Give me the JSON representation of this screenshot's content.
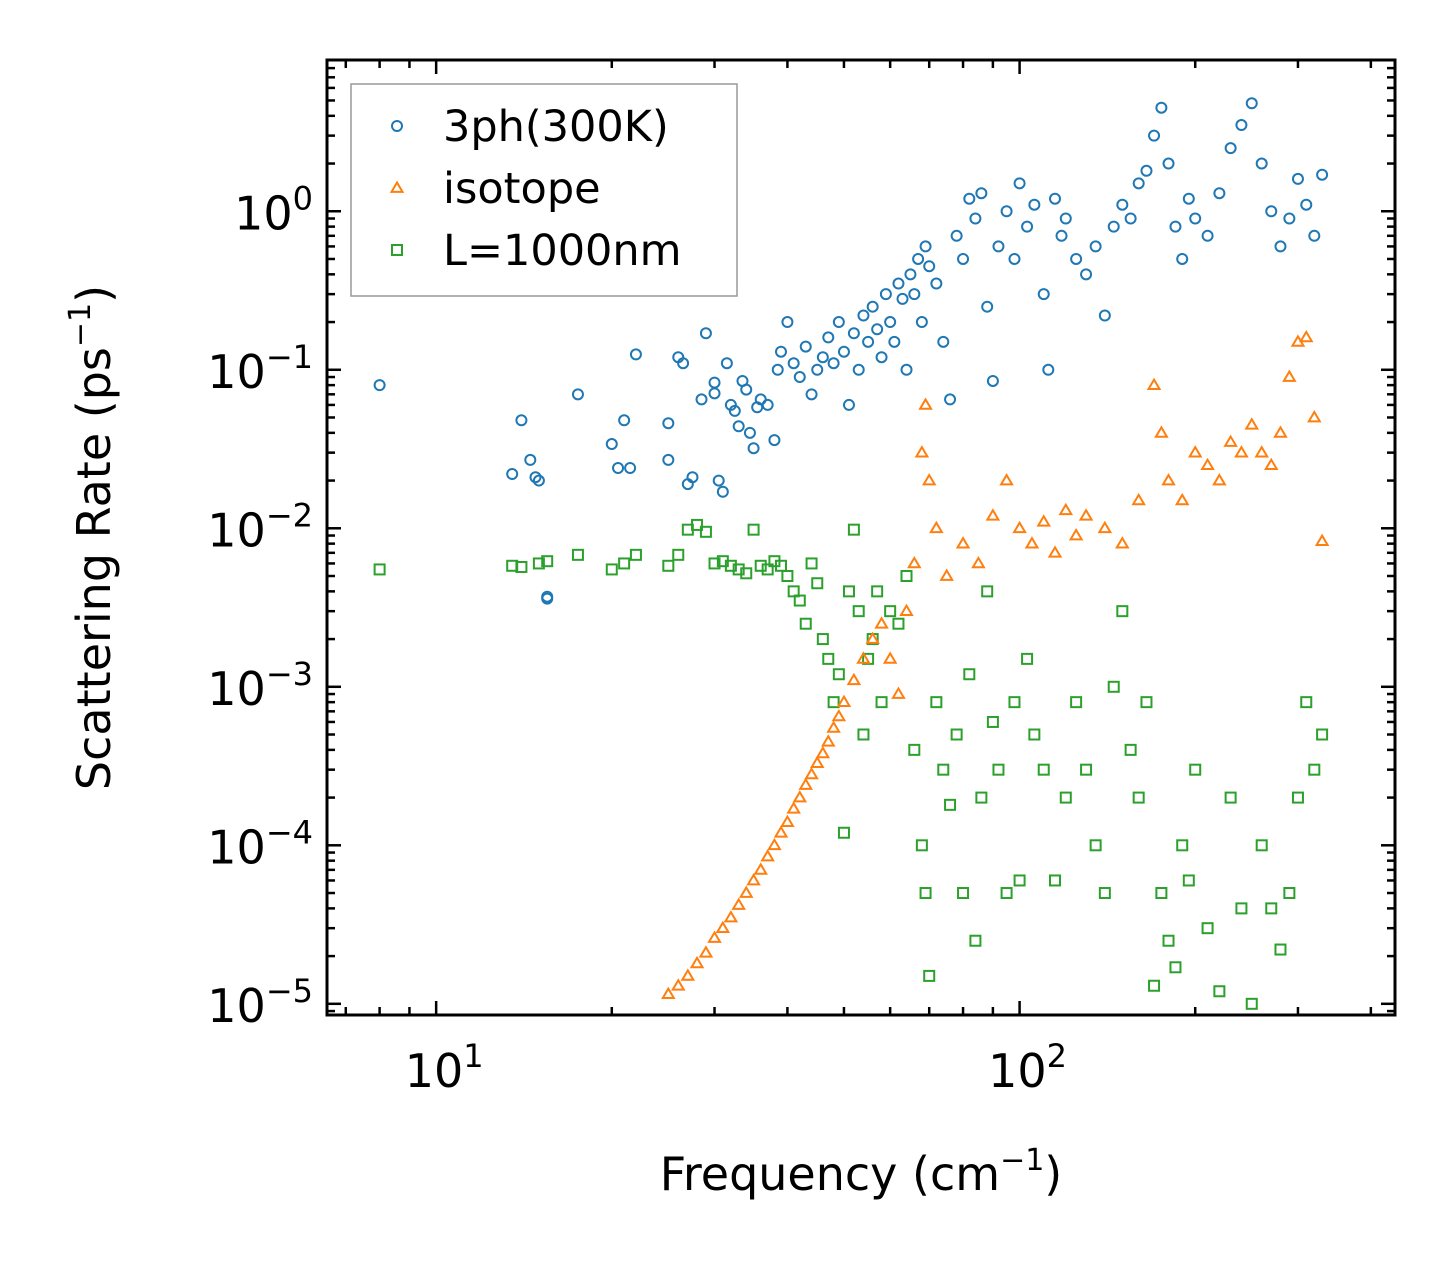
{
  "chart_data": {
    "type": "scatter",
    "xlabel": "Frequency (cm",
    "xlabel_sup": "−1",
    "xlabel_end": ")",
    "ylabel": "Scattering Rate (ps",
    "ylabel_sup": "−1",
    "ylabel_end": ")",
    "xscale": "log",
    "yscale": "log",
    "xlim": [
      6.5,
      440
    ],
    "ylim": [
      8.5e-06,
      9.0
    ],
    "x_ticks": [
      {
        "value": 10,
        "base": "10",
        "exp": "1"
      },
      {
        "value": 100,
        "base": "10",
        "exp": "2"
      }
    ],
    "y_ticks": [
      {
        "value": 1,
        "base": "10",
        "exp": "0"
      },
      {
        "value": 0.1,
        "base": "10",
        "exp": "−1"
      },
      {
        "value": 0.01,
        "base": "10",
        "exp": "−2"
      },
      {
        "value": 0.001,
        "base": "10",
        "exp": "−3"
      },
      {
        "value": 0.0001,
        "base": "10",
        "exp": "−4"
      },
      {
        "value": 1e-05,
        "base": "10",
        "exp": "−5"
      }
    ],
    "legend_position": "top-left",
    "series": [
      {
        "name": "3ph(300K)",
        "marker": "circle",
        "color": "#1f77b4",
        "points": [
          [
            8.0,
            0.08
          ],
          [
            13.5,
            0.022
          ],
          [
            14.0,
            0.048
          ],
          [
            14.5,
            0.027
          ],
          [
            14.8,
            0.021
          ],
          [
            15.0,
            0.02
          ],
          [
            15.5,
            0.0036
          ],
          [
            15.5,
            0.0037
          ],
          [
            17.5,
            0.07
          ],
          [
            20.0,
            0.034
          ],
          [
            20.5,
            0.024
          ],
          [
            21.0,
            0.048
          ],
          [
            21.5,
            0.024
          ],
          [
            22.0,
            0.125
          ],
          [
            25.0,
            0.046
          ],
          [
            25.0,
            0.027
          ],
          [
            26.0,
            0.12
          ],
          [
            26.5,
            0.11
          ],
          [
            27.0,
            0.019
          ],
          [
            27.5,
            0.021
          ],
          [
            28.5,
            0.065
          ],
          [
            29.0,
            0.17
          ],
          [
            30.0,
            0.083
          ],
          [
            30.0,
            0.071
          ],
          [
            30.5,
            0.02
          ],
          [
            31.0,
            0.017
          ],
          [
            31.5,
            0.11
          ],
          [
            32.0,
            0.06
          ],
          [
            32.5,
            0.055
          ],
          [
            33.0,
            0.044
          ],
          [
            33.5,
            0.085
          ],
          [
            34.0,
            0.075
          ],
          [
            34.5,
            0.04
          ],
          [
            35.0,
            0.032
          ],
          [
            35.5,
            0.058
          ],
          [
            36.0,
            0.065
          ],
          [
            37.0,
            0.06
          ],
          [
            38.0,
            0.036
          ],
          [
            38.5,
            0.1
          ],
          [
            39.0,
            0.13
          ],
          [
            40.0,
            0.2
          ],
          [
            41.0,
            0.11
          ],
          [
            42.0,
            0.09
          ],
          [
            43.0,
            0.14
          ],
          [
            44.0,
            0.07
          ],
          [
            45.0,
            0.1
          ],
          [
            46.0,
            0.12
          ],
          [
            47.0,
            0.16
          ],
          [
            48.0,
            0.11
          ],
          [
            49.0,
            0.2
          ],
          [
            50.0,
            0.13
          ],
          [
            51.0,
            0.06
          ],
          [
            52.0,
            0.17
          ],
          [
            53.0,
            0.1
          ],
          [
            54.0,
            0.22
          ],
          [
            55.0,
            0.15
          ],
          [
            56.0,
            0.25
          ],
          [
            57.0,
            0.18
          ],
          [
            58.0,
            0.12
          ],
          [
            59.0,
            0.3
          ],
          [
            60.0,
            0.2
          ],
          [
            61.0,
            0.15
          ],
          [
            62.0,
            0.35
          ],
          [
            63.0,
            0.28
          ],
          [
            64.0,
            0.1
          ],
          [
            65.0,
            0.4
          ],
          [
            66.0,
            0.3
          ],
          [
            67.0,
            0.5
          ],
          [
            68.0,
            0.2
          ],
          [
            69.0,
            0.6
          ],
          [
            70.0,
            0.45
          ],
          [
            72.0,
            0.35
          ],
          [
            74.0,
            0.15
          ],
          [
            76.0,
            0.065
          ],
          [
            78.0,
            0.7
          ],
          [
            80.0,
            0.5
          ],
          [
            82.0,
            1.2
          ],
          [
            84.0,
            0.9
          ],
          [
            86.0,
            1.3
          ],
          [
            88.0,
            0.25
          ],
          [
            90.0,
            0.085
          ],
          [
            92.0,
            0.6
          ],
          [
            95.0,
            1.0
          ],
          [
            98.0,
            0.5
          ],
          [
            100.0,
            1.5
          ],
          [
            103.0,
            0.8
          ],
          [
            106.0,
            1.1
          ],
          [
            110.0,
            0.3
          ],
          [
            112.0,
            0.1
          ],
          [
            115.0,
            1.2
          ],
          [
            118.0,
            0.7
          ],
          [
            120.0,
            0.9
          ],
          [
            125.0,
            0.5
          ],
          [
            130.0,
            0.4
          ],
          [
            135.0,
            0.6
          ],
          [
            140.0,
            0.22
          ],
          [
            145.0,
            0.8
          ],
          [
            150.0,
            1.1
          ],
          [
            155.0,
            0.9
          ],
          [
            160.0,
            1.5
          ],
          [
            165.0,
            1.8
          ],
          [
            170.0,
            3.0
          ],
          [
            175.0,
            4.5
          ],
          [
            180.0,
            2.0
          ],
          [
            185.0,
            0.8
          ],
          [
            190.0,
            0.5
          ],
          [
            195.0,
            1.2
          ],
          [
            200.0,
            0.9
          ],
          [
            210.0,
            0.7
          ],
          [
            220.0,
            1.3
          ],
          [
            230.0,
            2.5
          ],
          [
            240.0,
            3.5
          ],
          [
            250.0,
            4.8
          ],
          [
            260.0,
            2.0
          ],
          [
            270.0,
            1.0
          ],
          [
            280.0,
            0.6
          ],
          [
            290.0,
            0.9
          ],
          [
            300.0,
            1.6
          ],
          [
            310.0,
            1.1
          ],
          [
            320.0,
            0.7
          ],
          [
            330.0,
            1.7
          ]
        ]
      },
      {
        "name": "isotope",
        "marker": "triangle",
        "color": "#ff7f0e",
        "points": [
          [
            25.0,
            1.15e-05
          ],
          [
            26.0,
            1.3e-05
          ],
          [
            27.0,
            1.5e-05
          ],
          [
            28.0,
            1.8e-05
          ],
          [
            29.0,
            2.1e-05
          ],
          [
            30.0,
            2.6e-05
          ],
          [
            31.0,
            3e-05
          ],
          [
            32.0,
            3.5e-05
          ],
          [
            33.0,
            4.2e-05
          ],
          [
            34.0,
            5e-05
          ],
          [
            35.0,
            6e-05
          ],
          [
            36.0,
            7e-05
          ],
          [
            37.0,
            8.5e-05
          ],
          [
            38.0,
            0.0001
          ],
          [
            39.0,
            0.00012
          ],
          [
            40.0,
            0.00014
          ],
          [
            41.0,
            0.00017
          ],
          [
            42.0,
            0.0002
          ],
          [
            43.0,
            0.00024
          ],
          [
            44.0,
            0.00028
          ],
          [
            45.0,
            0.00033
          ],
          [
            46.0,
            0.00038
          ],
          [
            47.0,
            0.00045
          ],
          [
            48.0,
            0.00055
          ],
          [
            49.0,
            0.00065
          ],
          [
            50.0,
            0.0008
          ],
          [
            52.0,
            0.0011
          ],
          [
            54.0,
            0.0015
          ],
          [
            56.0,
            0.002
          ],
          [
            58.0,
            0.0025
          ],
          [
            60.0,
            0.0015
          ],
          [
            62.0,
            0.0009
          ],
          [
            64.0,
            0.003
          ],
          [
            66.0,
            0.006
          ],
          [
            68.0,
            0.03
          ],
          [
            69.0,
            0.06
          ],
          [
            70.0,
            0.02
          ],
          [
            72.0,
            0.01
          ],
          [
            75.0,
            0.005
          ],
          [
            80.0,
            0.008
          ],
          [
            85.0,
            0.006
          ],
          [
            90.0,
            0.012
          ],
          [
            95.0,
            0.02
          ],
          [
            100.0,
            0.01
          ],
          [
            105.0,
            0.008
          ],
          [
            110.0,
            0.011
          ],
          [
            115.0,
            0.007
          ],
          [
            120.0,
            0.013
          ],
          [
            125.0,
            0.009
          ],
          [
            130.0,
            0.012
          ],
          [
            140.0,
            0.01
          ],
          [
            150.0,
            0.008
          ],
          [
            160.0,
            0.015
          ],
          [
            170.0,
            0.08
          ],
          [
            175.0,
            0.04
          ],
          [
            180.0,
            0.02
          ],
          [
            190.0,
            0.015
          ],
          [
            200.0,
            0.03
          ],
          [
            210.0,
            0.025
          ],
          [
            220.0,
            0.02
          ],
          [
            230.0,
            0.035
          ],
          [
            240.0,
            0.03
          ],
          [
            250.0,
            0.045
          ],
          [
            260.0,
            0.03
          ],
          [
            270.0,
            0.025
          ],
          [
            280.0,
            0.04
          ],
          [
            290.0,
            0.09
          ],
          [
            300.0,
            0.15
          ],
          [
            310.0,
            0.16
          ],
          [
            320.0,
            0.05
          ],
          [
            330.0,
            0.0083
          ]
        ]
      },
      {
        "name": "L=1000nm",
        "marker": "square",
        "color": "#2ca02c",
        "points": [
          [
            8.0,
            0.0055
          ],
          [
            13.5,
            0.0058
          ],
          [
            14.0,
            0.0057
          ],
          [
            15.0,
            0.006
          ],
          [
            15.5,
            0.0062
          ],
          [
            17.5,
            0.0068
          ],
          [
            20.0,
            0.0055
          ],
          [
            21.0,
            0.006
          ],
          [
            22.0,
            0.0068
          ],
          [
            25.0,
            0.0058
          ],
          [
            26.0,
            0.0068
          ],
          [
            27.0,
            0.0098
          ],
          [
            28.0,
            0.0105
          ],
          [
            29.0,
            0.0095
          ],
          [
            30.0,
            0.006
          ],
          [
            31.0,
            0.0062
          ],
          [
            32.0,
            0.0058
          ],
          [
            33.0,
            0.0055
          ],
          [
            34.0,
            0.0052
          ],
          [
            35.0,
            0.0098
          ],
          [
            36.0,
            0.0058
          ],
          [
            37.0,
            0.0055
          ],
          [
            38.0,
            0.0062
          ],
          [
            39.0,
            0.0058
          ],
          [
            40.0,
            0.005
          ],
          [
            41.0,
            0.004
          ],
          [
            42.0,
            0.0035
          ],
          [
            43.0,
            0.0025
          ],
          [
            44.0,
            0.006
          ],
          [
            45.0,
            0.0045
          ],
          [
            46.0,
            0.002
          ],
          [
            47.0,
            0.0015
          ],
          [
            48.0,
            0.0008
          ],
          [
            49.0,
            0.0012
          ],
          [
            50.0,
            0.00012
          ],
          [
            51.0,
            0.004
          ],
          [
            52.0,
            0.0098
          ],
          [
            53.0,
            0.003
          ],
          [
            54.0,
            0.0005
          ],
          [
            55.0,
            0.0015
          ],
          [
            56.0,
            0.002
          ],
          [
            57.0,
            0.004
          ],
          [
            58.0,
            0.0008
          ],
          [
            60.0,
            0.003
          ],
          [
            62.0,
            0.0025
          ],
          [
            64.0,
            0.005
          ],
          [
            66.0,
            0.0004
          ],
          [
            68.0,
            0.0001
          ],
          [
            69.0,
            5e-05
          ],
          [
            70.0,
            1.5e-05
          ],
          [
            72.0,
            0.0008
          ],
          [
            74.0,
            0.0003
          ],
          [
            76.0,
            0.00018
          ],
          [
            78.0,
            0.0005
          ],
          [
            80.0,
            5e-05
          ],
          [
            82.0,
            0.0012
          ],
          [
            84.0,
            2.5e-05
          ],
          [
            86.0,
            0.0002
          ],
          [
            88.0,
            0.004
          ],
          [
            90.0,
            0.0006
          ],
          [
            92.0,
            0.0003
          ],
          [
            95.0,
            5e-05
          ],
          [
            98.0,
            0.0008
          ],
          [
            100.0,
            6e-05
          ],
          [
            103.0,
            0.0015
          ],
          [
            106.0,
            0.0005
          ],
          [
            110.0,
            0.0003
          ],
          [
            115.0,
            6e-05
          ],
          [
            120.0,
            0.0002
          ],
          [
            125.0,
            0.0008
          ],
          [
            130.0,
            0.0003
          ],
          [
            135.0,
            0.0001
          ],
          [
            140.0,
            5e-05
          ],
          [
            145.0,
            0.001
          ],
          [
            150.0,
            0.003
          ],
          [
            155.0,
            0.0004
          ],
          [
            160.0,
            0.0002
          ],
          [
            165.0,
            0.0008
          ],
          [
            170.0,
            1.3e-05
          ],
          [
            175.0,
            5e-05
          ],
          [
            180.0,
            2.5e-05
          ],
          [
            185.0,
            1.7e-05
          ],
          [
            190.0,
            0.0001
          ],
          [
            195.0,
            6e-05
          ],
          [
            200.0,
            0.0003
          ],
          [
            210.0,
            3e-05
          ],
          [
            220.0,
            1.2e-05
          ],
          [
            230.0,
            0.0002
          ],
          [
            240.0,
            4e-05
          ],
          [
            250.0,
            1e-05
          ],
          [
            260.0,
            0.0001
          ],
          [
            270.0,
            4e-05
          ],
          [
            280.0,
            2.2e-05
          ],
          [
            290.0,
            5e-05
          ],
          [
            300.0,
            0.0002
          ],
          [
            310.0,
            0.0008
          ],
          [
            320.0,
            0.0003
          ],
          [
            330.0,
            0.0005
          ]
        ]
      }
    ]
  }
}
